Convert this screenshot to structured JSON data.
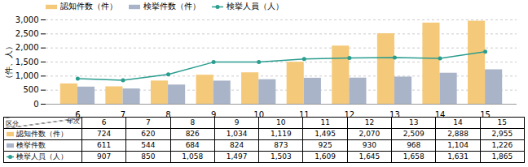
{
  "chart_data": {
    "type": "bar",
    "categories": [
      "6",
      "7",
      "8",
      "9",
      "10",
      "11",
      "12",
      "13",
      "14",
      "15"
    ],
    "series": [
      {
        "name": "認知件数（件）",
        "color": "#F5C97A",
        "values": [
          724,
          620,
          826,
          1034,
          1119,
          1495,
          2070,
          2509,
          2888,
          2955
        ],
        "value_labels": [
          "724",
          "620",
          "826",
          "1,034",
          "1,119",
          "1,495",
          "2,070",
          "2,509",
          "2,888",
          "2,955"
        ]
      },
      {
        "name": "検挙件数（件）",
        "color": "#A9B4C8",
        "values": [
          611,
          544,
          684,
          824,
          873,
          925,
          930,
          968,
          1104,
          1226
        ],
        "value_labels": [
          "611",
          "544",
          "684",
          "824",
          "873",
          "925",
          "930",
          "968",
          "1,104",
          "1,226"
        ]
      },
      {
        "name": "検挙人員（人）",
        "type": "line",
        "marker": "circle",
        "color": "#2A9D8F",
        "values": [
          907,
          850,
          1058,
          1497,
          1503,
          1609,
          1645,
          1658,
          1631,
          1865
        ],
        "value_labels": [
          "907",
          "850",
          "1,058",
          "1,497",
          "1,503",
          "1,609",
          "1,645",
          "1,658",
          "1,631",
          "1,865"
        ]
      }
    ],
    "ylabel": "（件、人）",
    "ylim": [
      0,
      3000
    ],
    "yticks": [
      0,
      500,
      {
        "value": 1000,
        "label": "1,000"
      },
      {
        "value": 1500,
        "label": "1,500"
      },
      {
        "value": 2000,
        "label": "2,000"
      },
      {
        "value": 2500,
        "label": "2,500"
      },
      {
        "value": 3000,
        "label": "3,000"
      }
    ],
    "grid": true,
    "legend": "upper left",
    "table": {
      "col_header": "年次",
      "row_header": "区分",
      "row_labels": [
        "認知件数（件）",
        "検挙件数",
        "検挙人員（人）"
      ]
    }
  }
}
